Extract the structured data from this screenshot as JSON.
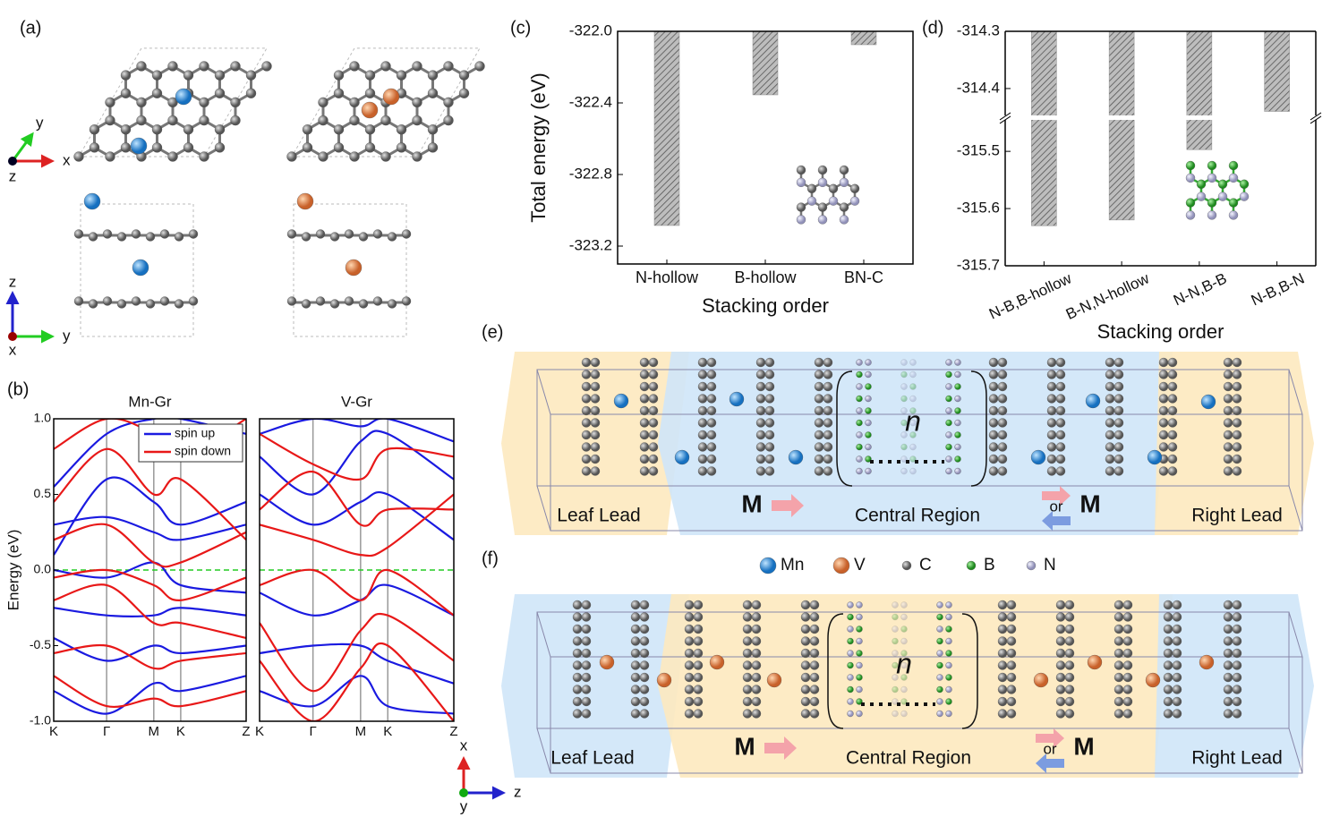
{
  "panels": {
    "a": "(a)",
    "b": "(b)",
    "c": "(c)",
    "d": "(d)",
    "e": "(e)",
    "f": "(f)"
  },
  "axes_a": {
    "top": [
      "x",
      "y",
      "z"
    ],
    "side": [
      "z",
      "y",
      "x"
    ]
  },
  "axes_b": [
    "x",
    "z",
    "y"
  ],
  "e": {
    "left": "Leaf Lead",
    "center": "Central Region",
    "right": "Right Lead",
    "m1": "M",
    "or": "or",
    "m2": "M",
    "n": "n"
  },
  "f": {
    "left": "Leaf Lead",
    "center": "Central Region",
    "right": "Right Lead",
    "m1": "M",
    "or": "or",
    "m2": "M",
    "n": "n"
  },
  "legend": [
    "Mn",
    "V",
    "C",
    "B",
    "N"
  ],
  "chart_data": [
    {
      "type": "band",
      "title": "Mn-Gr",
      "ylabel": "Energy (eV)",
      "categories": [
        "K",
        "Γ",
        "M",
        "K",
        "Z"
      ],
      "ylim": [
        -1,
        1
      ],
      "yticks": [
        {
          "value": -1,
          "label": "-1.0"
        },
        -0.5,
        {
          "value": 0,
          "label": "0.0"
        },
        0.5,
        {
          "value": 1,
          "label": "1.0"
        }
      ],
      "series": [
        {
          "name": "spin up",
          "color": "#1a1ae0",
          "bands": [
            [
              0.55,
              0.9,
              1.0,
              1.0,
              0.9
            ],
            [
              0.3,
              0.35,
              0.25,
              0.2,
              0.3
            ],
            [
              0.0,
              -0.05,
              0.05,
              -0.1,
              -0.15
            ],
            [
              -0.25,
              -0.3,
              -0.3,
              -0.25,
              -0.3
            ],
            [
              -0.45,
              -0.6,
              -0.5,
              -0.55,
              -0.5
            ],
            [
              -0.8,
              -0.95,
              -0.75,
              -0.8,
              -0.7
            ],
            [
              0.1,
              0.6,
              0.45,
              0.3,
              0.45
            ]
          ]
        },
        {
          "name": "spin down",
          "color": "#e81818",
          "bands": [
            [
              0.45,
              0.8,
              0.5,
              0.6,
              0.2
            ],
            [
              0.2,
              0.3,
              0.05,
              0.05,
              0.25
            ],
            [
              -0.05,
              0.0,
              -0.1,
              -0.2,
              -0.05
            ],
            [
              -0.2,
              -0.1,
              -0.35,
              -0.35,
              -0.45
            ],
            [
              -0.55,
              -0.5,
              -0.65,
              -0.6,
              -0.55
            ],
            [
              -0.7,
              -0.9,
              -0.85,
              -0.9,
              -0.8
            ],
            [
              0.8,
              1.0,
              0.9,
              0.75,
              1.0
            ]
          ]
        }
      ]
    },
    {
      "type": "band",
      "title": "V-Gr",
      "categories": [
        "K",
        "Γ",
        "M",
        "K",
        "Z"
      ],
      "ylim": [
        -1,
        1
      ],
      "series": [
        {
          "color": "#1a1ae0",
          "bands": [
            [
              0.75,
              0.5,
              0.85,
              0.9,
              0.6
            ],
            [
              0.5,
              0.3,
              0.45,
              0.5,
              0.2
            ],
            [
              -0.15,
              -0.3,
              -0.2,
              -0.1,
              -0.3
            ],
            [
              -0.55,
              -0.5,
              -0.5,
              -0.6,
              -0.75
            ],
            [
              -0.8,
              -0.9,
              -0.7,
              -0.9,
              -0.95
            ],
            [
              0.9,
              1.0,
              0.95,
              1.0,
              0.85
            ]
          ]
        },
        {
          "color": "#e81818",
          "bands": [
            [
              0.9,
              0.7,
              0.6,
              0.8,
              0.75
            ],
            [
              0.4,
              0.65,
              0.3,
              0.4,
              0.4
            ],
            [
              -0.1,
              0.0,
              -0.2,
              0.0,
              -0.3
            ],
            [
              -0.35,
              -0.8,
              -0.4,
              -0.3,
              -0.6
            ],
            [
              -0.6,
              -1.0,
              -0.65,
              -0.5,
              -1.0
            ],
            [
              0.3,
              0.2,
              0.1,
              0.15,
              0.5
            ]
          ]
        }
      ]
    },
    {
      "type": "bar",
      "ylabel": "Total energy (eV)",
      "xlabel": "Stacking order",
      "categories": [
        "N-hollow",
        "B-hollow",
        "BN-C"
      ],
      "values": [
        -323.085,
        -322.355,
        -322.075
      ],
      "ylim": [
        -323.3,
        -322.0
      ],
      "yticks": [
        {
          "value": -322,
          "label": "-322.0"
        },
        -322.4,
        -322.8,
        -323.2
      ],
      "color": "#8a8a8a"
    },
    {
      "type": "bar",
      "xlabel": "Stacking order",
      "categories": [
        "N-B,B-hollow",
        "B-N,N-hollow",
        "N-N,B-B",
        "N-B,B-N"
      ],
      "values": [
        -315.63,
        -315.62,
        -315.497,
        -314.44
      ],
      "ylim": [
        -315.7,
        -314.3
      ],
      "ybreak": [
        -315.445,
        -314.447
      ],
      "yticks": [
        -314.3,
        -314.4,
        -315.5,
        -315.6,
        -315.7
      ],
      "color": "#8a8a8a"
    }
  ]
}
